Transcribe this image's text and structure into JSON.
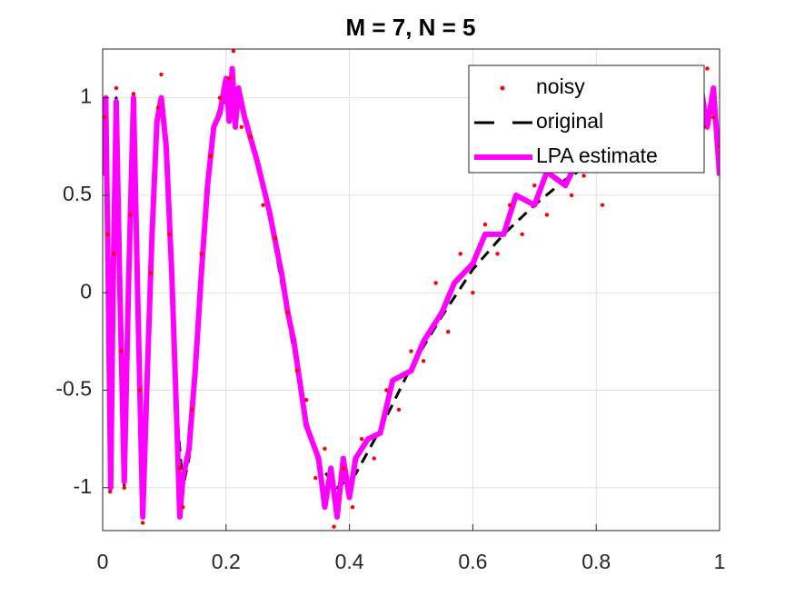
{
  "chart_data": {
    "type": "line",
    "title": "M = 7, N = 5",
    "xlim": [
      0,
      1
    ],
    "ylim": [
      -1.22,
      1.25
    ],
    "xticks": [
      0,
      0.2,
      0.4,
      0.6,
      0.8,
      1
    ],
    "yticks": [
      -1,
      -0.5,
      0,
      0.5,
      1
    ],
    "grid": true,
    "legend": "northeast",
    "series": [
      {
        "name": "noisy",
        "color": "#ff0000",
        "style": "dots",
        "x": [
          0.003,
          0.008,
          0.012,
          0.018,
          0.022,
          0.03,
          0.035,
          0.045,
          0.05,
          0.06,
          0.065,
          0.078,
          0.09,
          0.095,
          0.108,
          0.125,
          0.13,
          0.145,
          0.16,
          0.175,
          0.19,
          0.205,
          0.212,
          0.225,
          0.24,
          0.26,
          0.28,
          0.3,
          0.315,
          0.33,
          0.345,
          0.36,
          0.375,
          0.39,
          0.405,
          0.42,
          0.44,
          0.46,
          0.48,
          0.5,
          0.52,
          0.54,
          0.56,
          0.58,
          0.6,
          0.62,
          0.64,
          0.66,
          0.68,
          0.7,
          0.72,
          0.74,
          0.76,
          0.78,
          0.8,
          0.81,
          0.83,
          0.86,
          0.88,
          0.9,
          0.92,
          0.94,
          0.96,
          0.975,
          0.98,
          0.99,
          1.0
        ],
        "values": [
          0.9,
          0.3,
          -1.02,
          0.2,
          1.05,
          -0.3,
          -1.0,
          0.4,
          1.02,
          -0.5,
          -1.18,
          0.1,
          0.95,
          1.12,
          0.3,
          -0.9,
          -1.1,
          -0.6,
          0.2,
          0.7,
          1.0,
          1.1,
          1.24,
          0.85,
          0.8,
          0.45,
          0.28,
          -0.1,
          -0.4,
          -0.55,
          -0.95,
          -0.8,
          -1.2,
          -0.9,
          -1.1,
          -0.75,
          -0.85,
          -0.5,
          -0.6,
          -0.3,
          -0.35,
          0.05,
          -0.2,
          0.2,
          0.0,
          0.35,
          0.2,
          0.45,
          0.3,
          0.55,
          0.4,
          0.7,
          0.5,
          0.6,
          0.75,
          0.45,
          0.8,
          0.7,
          0.9,
          0.75,
          0.95,
          0.8,
          1.0,
          0.85,
          1.15,
          0.9,
          0.75
        ]
      },
      {
        "name": "original",
        "color": "#000000",
        "style": "dashed",
        "x": [
          0,
          0.005,
          0.009,
          0.013,
          0.017,
          0.022,
          0.028,
          0.035,
          0.042,
          0.05,
          0.057,
          0.065,
          0.072,
          0.08,
          0.088,
          0.095,
          0.103,
          0.112,
          0.12,
          0.13,
          0.14,
          0.15,
          0.16,
          0.17,
          0.18,
          0.19,
          0.21,
          0.23,
          0.25,
          0.27,
          0.29,
          0.31,
          0.33,
          0.35,
          0.38,
          0.41,
          0.45,
          0.5,
          0.55,
          0.6,
          0.65,
          0.7,
          0.75,
          0.8,
          0.85,
          0.9,
          0.95,
          1
        ],
        "values": [
          0.6,
          1,
          0,
          -1,
          0,
          1,
          0,
          -1,
          0,
          1,
          0,
          -1,
          -0.5,
          0.3,
          0.85,
          1,
          0.8,
          0.1,
          -0.6,
          -1,
          -0.85,
          -0.4,
          0.1,
          0.55,
          0.85,
          0.95,
          1,
          0.93,
          0.7,
          0.4,
          0.05,
          -0.3,
          -0.65,
          -0.88,
          -1,
          -0.93,
          -0.7,
          -0.38,
          -0.12,
          0.12,
          0.3,
          0.45,
          0.58,
          0.68,
          0.77,
          0.85,
          0.9,
          0.93
        ]
      },
      {
        "name": "LPA estimate",
        "color": "#ff00ff",
        "style": "thick",
        "x": [
          0,
          0.005,
          0.009,
          0.013,
          0.017,
          0.022,
          0.028,
          0.035,
          0.042,
          0.05,
          0.057,
          0.065,
          0.072,
          0.08,
          0.088,
          0.095,
          0.103,
          0.112,
          0.12,
          0.125,
          0.13,
          0.14,
          0.15,
          0.16,
          0.17,
          0.18,
          0.19,
          0.2,
          0.205,
          0.21,
          0.215,
          0.22,
          0.23,
          0.25,
          0.27,
          0.29,
          0.3,
          0.31,
          0.33,
          0.35,
          0.36,
          0.37,
          0.38,
          0.39,
          0.4,
          0.41,
          0.43,
          0.45,
          0.47,
          0.5,
          0.52,
          0.55,
          0.57,
          0.6,
          0.62,
          0.65,
          0.67,
          0.7,
          0.72,
          0.75,
          0.77,
          0.8,
          0.82,
          0.85,
          0.87,
          0.9,
          0.92,
          0.95,
          0.97,
          0.98,
          0.99,
          1
        ],
        "values": [
          0.6,
          1.0,
          0.05,
          -1.0,
          0.05,
          0.98,
          0.0,
          -0.97,
          0.05,
          1.0,
          -0.05,
          -1.15,
          -0.45,
          0.3,
          0.88,
          1.0,
          0.75,
          0.1,
          -0.65,
          -1.15,
          -0.95,
          -0.8,
          -0.4,
          0.1,
          0.55,
          0.85,
          0.92,
          1.1,
          0.88,
          1.15,
          0.85,
          1.05,
          0.9,
          0.68,
          0.42,
          0.1,
          -0.1,
          -0.25,
          -0.68,
          -0.85,
          -1.1,
          -0.9,
          -1.15,
          -0.85,
          -1.05,
          -0.85,
          -0.75,
          -0.72,
          -0.45,
          -0.4,
          -0.25,
          -0.1,
          0.05,
          0.15,
          0.3,
          0.3,
          0.5,
          0.45,
          0.62,
          0.55,
          0.68,
          0.65,
          0.82,
          0.75,
          0.9,
          0.85,
          0.95,
          0.88,
          1.05,
          0.85,
          1.05,
          0.6
        ]
      }
    ]
  }
}
